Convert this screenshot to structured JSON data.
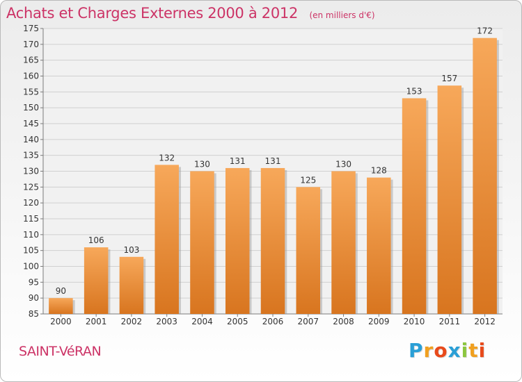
{
  "chart_data": {
    "type": "bar",
    "title": "Achats et Charges Externes 2000 à 2012",
    "subtitle": "(en milliers d'€)",
    "categories": [
      "2000",
      "2001",
      "2002",
      "2003",
      "2004",
      "2005",
      "2006",
      "2007",
      "2008",
      "2009",
      "2010",
      "2011",
      "2012"
    ],
    "values": [
      90,
      106,
      103,
      132,
      130,
      131,
      131,
      125,
      130,
      128,
      153,
      157,
      172
    ],
    "ylim": [
      85,
      175
    ],
    "yticks": [
      85,
      90,
      95,
      100,
      105,
      110,
      115,
      120,
      125,
      130,
      135,
      140,
      145,
      150,
      155,
      160,
      165,
      170,
      175
    ],
    "grid": true,
    "colors": {
      "bar_top": "#f7a85a",
      "bar_bottom": "#d8751f",
      "bar_shadow": "#9a9a9a",
      "accent": "#cc3366"
    }
  },
  "footer": {
    "commune": "SAINT-VéRAN",
    "brand_letters": [
      "P",
      "r",
      "o",
      "x",
      "i",
      "t",
      "i"
    ],
    "brand_colors": [
      "#2a9fd6",
      "#f0a020",
      "#e84a1b",
      "#2a9fd6",
      "#8cc63f",
      "#f0a020",
      "#e84a1b"
    ]
  }
}
